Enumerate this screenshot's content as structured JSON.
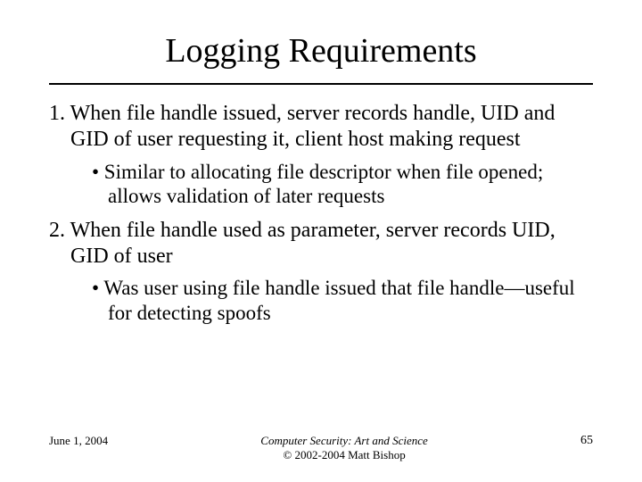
{
  "title": "Logging Requirements",
  "items": {
    "one": {
      "text": "1. When file handle issued, server records handle, UID and GID of user requesting it, client host making request",
      "bullet": "• Similar to allocating file descriptor when file opened; allows validation of later requests"
    },
    "two": {
      "text": "2. When file handle used as parameter, server records UID, GID of user",
      "bullet": "• Was user using file handle issued that file handle—useful for detecting spoofs"
    }
  },
  "footer": {
    "date": "June 1, 2004",
    "center_line1": "Computer Security: Art and Science",
    "center_line2": "© 2002-2004 Matt Bishop",
    "page": "65"
  }
}
